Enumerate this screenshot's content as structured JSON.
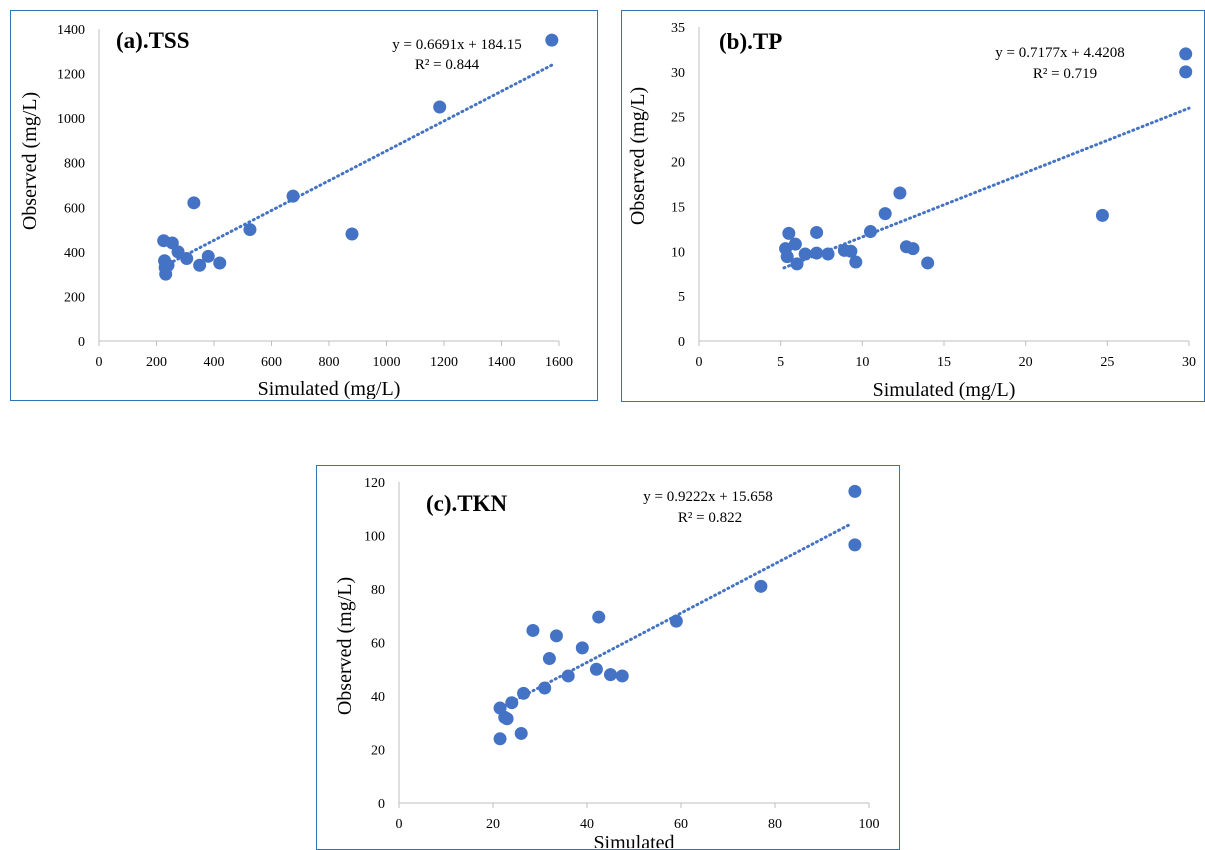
{
  "marker_color": "#4472c4",
  "frame_color": "#2e75b6",
  "chart_data": [
    {
      "type": "scatter",
      "title": "(a).TSS",
      "xlabel": "Simulated (mg/L)",
      "ylabel": "Observed (mg/L)",
      "xlim": [
        0,
        1600
      ],
      "ylim": [
        0,
        1400
      ],
      "x_ticks": [
        "0",
        "200",
        "400",
        "600",
        "800",
        "1000",
        "1200",
        "1400",
        "1600"
      ],
      "y_ticks": [
        "0",
        "200",
        "400",
        "600",
        "800",
        "1000",
        "1200",
        "1400"
      ],
      "grid": false,
      "trendline": {
        "style": "dotted linear",
        "slope": 0.6691,
        "intercept": 184.15,
        "x_range": [
          228,
          1575
        ],
        "equation": "y = 0.6691x + 184.15",
        "r2": "R² = 0.844"
      },
      "points": [
        [
          225,
          450
        ],
        [
          228,
          360
        ],
        [
          230,
          330
        ],
        [
          232,
          300
        ],
        [
          240,
          340
        ],
        [
          255,
          440
        ],
        [
          275,
          400
        ],
        [
          305,
          370
        ],
        [
          330,
          620
        ],
        [
          350,
          340
        ],
        [
          380,
          380
        ],
        [
          420,
          350
        ],
        [
          525,
          500
        ],
        [
          675,
          650
        ],
        [
          880,
          480
        ],
        [
          1185,
          1050
        ],
        [
          1575,
          1350
        ]
      ]
    },
    {
      "type": "scatter",
      "title": "(b).TP",
      "xlabel": "Simulated (mg/L)",
      "ylabel": "Observed (mg/L)",
      "xlim": [
        0,
        30
      ],
      "ylim": [
        0,
        35
      ],
      "x_ticks": [
        "0",
        "5",
        "10",
        "15",
        "20",
        "25",
        "30"
      ],
      "y_ticks": [
        "0",
        "5",
        "10",
        "15",
        "20",
        "25",
        "30",
        "35"
      ],
      "grid": false,
      "trendline": {
        "style": "dotted linear",
        "slope": 0.7177,
        "intercept": 4.4208,
        "x_range": [
          5.2,
          30
        ],
        "equation": "y = 0.7177x + 4.4208",
        "r2": "R² = 0.719"
      },
      "points": [
        [
          5.3,
          10.3
        ],
        [
          5.4,
          9.4
        ],
        [
          5.5,
          12.0
        ],
        [
          5.9,
          10.8
        ],
        [
          6.0,
          8.6
        ],
        [
          6.5,
          9.7
        ],
        [
          7.2,
          9.8
        ],
        [
          7.2,
          12.1
        ],
        [
          7.9,
          9.7
        ],
        [
          8.9,
          10.1
        ],
        [
          9.3,
          10.0
        ],
        [
          9.6,
          8.8
        ],
        [
          10.5,
          12.2
        ],
        [
          11.4,
          14.2
        ],
        [
          12.3,
          16.5
        ],
        [
          12.7,
          10.5
        ],
        [
          13.1,
          10.3
        ],
        [
          14.0,
          8.7
        ],
        [
          24.7,
          14.0
        ],
        [
          29.8,
          30.0
        ],
        [
          29.8,
          32.0
        ]
      ]
    },
    {
      "type": "scatter",
      "title": "(c).TKN",
      "xlabel": "Simulated",
      "ylabel": "Observed (mg/L)",
      "xlim": [
        0,
        100
      ],
      "ylim": [
        0,
        120
      ],
      "x_ticks": [
        "0",
        "20",
        "40",
        "60",
        "80",
        "100"
      ],
      "y_ticks": [
        "0",
        "20",
        "40",
        "60",
        "80",
        "100",
        "120"
      ],
      "grid": false,
      "trendline": {
        "style": "dotted linear",
        "slope": 0.9222,
        "intercept": 15.658,
        "x_range": [
          21,
          96
        ],
        "equation": "y = 0.9222x + 15.658",
        "r2": "R² = 0.822"
      },
      "points": [
        [
          21.5,
          24
        ],
        [
          21.5,
          35.5
        ],
        [
          22.5,
          32
        ],
        [
          23,
          31.5
        ],
        [
          24,
          37.5
        ],
        [
          26,
          26
        ],
        [
          26.5,
          41
        ],
        [
          28.5,
          64.5
        ],
        [
          31,
          43
        ],
        [
          32,
          54
        ],
        [
          33.5,
          62.5
        ],
        [
          36,
          47.5
        ],
        [
          39,
          58
        ],
        [
          42,
          50
        ],
        [
          42.5,
          69.5
        ],
        [
          45,
          48
        ],
        [
          47.5,
          47.5
        ],
        [
          59,
          68
        ],
        [
          77,
          81
        ],
        [
          97,
          116.5
        ],
        [
          97,
          96.5
        ]
      ]
    }
  ]
}
